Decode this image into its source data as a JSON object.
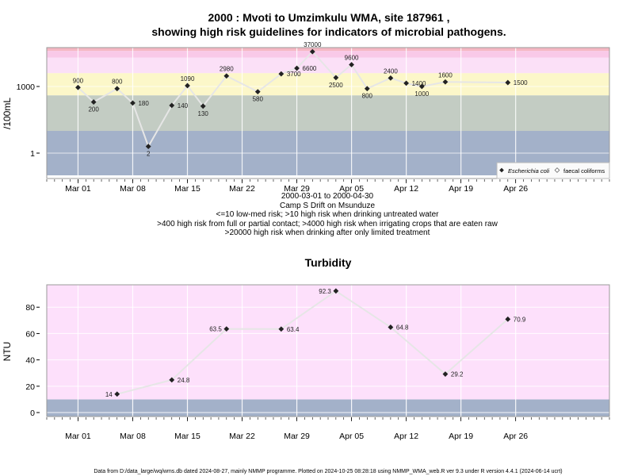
{
  "footer": "Data from D:/data_large/wq/wms.db dated 2024-08-27, mainly NMMP programme. Plotted on 2024-10-25 08:28:18 using NMMP_WMA_web.R ver 9.3 under R version 4.4.1 (2024-06-14 ucrt)",
  "x_ticks": [
    "Mar 01",
    "Mar 08",
    "Mar 15",
    "Mar 22",
    "Mar 29",
    "Apr 05",
    "Apr 12",
    "Apr 19",
    "Apr 26"
  ],
  "x_tick_dates": [
    "2000-03-01",
    "2000-03-08",
    "2000-03-15",
    "2000-03-22",
    "2000-03-29",
    "2000-04-05",
    "2000-04-12",
    "2000-04-19",
    "2000-04-26"
  ],
  "colors": {
    "band_low": "#a3b1c9",
    "band_green": "#c3ccc3",
    "band_yellow": "#fcf7c9",
    "band_pink": "#fbe0f7",
    "band_pink2": "#f9c9e8",
    "band_red": "#f5b7c3",
    "line": "#e6e6e6",
    "point": "#222222",
    "turbidity_high": "#fde0fb",
    "turbidity_low": "#a3b1c9"
  },
  "chart_data": [
    {
      "type": "line",
      "title_line1": "2000 : Mvoti to Umzimkulu WMA, site 187961 ,",
      "title_line2": "showing high risk guidelines for indicators of microbial pathogens.",
      "ylabel": "/100mL",
      "y_scale": "log10",
      "y_ticks": [
        "1",
        "1000"
      ],
      "x_range": [
        "2000-02-26",
        "2000-05-08"
      ],
      "subtitle_lines": [
        "2000-03-01 to 2000-04-30",
        "Camp S Drift on Msunduze",
        "<=10 low-med risk; >10 high risk when drinking untreated water",
        ">400 high risk from full or partial contact; >4000 high risk when irrigating crops that are eaten raw",
        ">20000 high risk when drinking after only limited treatment"
      ],
      "legend": [
        "Escherichia coli",
        "faecal coliforms"
      ],
      "legend_position": "bottom-right",
      "series": [
        {
          "name": "Escherichia coli",
          "points": [
            {
              "x": "2000-03-01",
              "y": 900,
              "label": "900"
            },
            {
              "x": "2000-03-03",
              "y": 200,
              "label": "200"
            },
            {
              "x": "2000-03-06",
              "y": 800,
              "label": "800"
            },
            {
              "x": "2000-03-08",
              "y": 180,
              "label": "180"
            },
            {
              "x": "2000-03-10",
              "y": 2,
              "label": "2"
            },
            {
              "x": "2000-03-13",
              "y": 140,
              "label": "140"
            },
            {
              "x": "2000-03-15",
              "y": 1090,
              "label": "1090"
            },
            {
              "x": "2000-03-17",
              "y": 130,
              "label": "130"
            },
            {
              "x": "2000-03-20",
              "y": 2980,
              "label": "2980"
            },
            {
              "x": "2000-03-24",
              "y": 580,
              "label": "580"
            },
            {
              "x": "2000-03-27",
              "y": 3700,
              "label": "3700"
            },
            {
              "x": "2000-03-29",
              "y": 6600,
              "label": "6600"
            },
            {
              "x": "2000-03-31",
              "y": 37000,
              "label": "37000"
            },
            {
              "x": "2000-04-03",
              "y": 2500,
              "label": "2500"
            },
            {
              "x": "2000-04-05",
              "y": 9600,
              "label": "9600"
            },
            {
              "x": "2000-04-07",
              "y": 800,
              "label": "800"
            },
            {
              "x": "2000-04-10",
              "y": 2400,
              "label": "2400"
            },
            {
              "x": "2000-04-12",
              "y": 1400,
              "label": "1400"
            },
            {
              "x": "2000-04-14",
              "y": 1000,
              "label": "1000"
            },
            {
              "x": "2000-04-17",
              "y": 1600,
              "label": "1600"
            },
            {
              "x": "2000-04-25",
              "y": 1500,
              "label": "1500"
            }
          ]
        }
      ],
      "bands": [
        {
          "from": 0.1,
          "to": 10,
          "color_key": "band_low"
        },
        {
          "from": 10,
          "to": 400,
          "color_key": "band_green"
        },
        {
          "from": 400,
          "to": 4000,
          "color_key": "band_yellow"
        },
        {
          "from": 4000,
          "to": 20000,
          "color_key": "band_pink"
        },
        {
          "from": 20000,
          "to": 40000,
          "color_key": "band_pink2"
        },
        {
          "from": 40000,
          "to": 200000,
          "color_key": "band_red"
        }
      ]
    },
    {
      "type": "line",
      "title": "Turbidity",
      "ylabel": "NTU",
      "y_ticks": [
        0,
        20,
        40,
        60,
        80
      ],
      "ylim": [
        -3,
        97
      ],
      "x_range": [
        "2000-02-26",
        "2000-05-08"
      ],
      "series": [
        {
          "name": "",
          "points": [
            {
              "x": "2000-03-06",
              "y": 14,
              "label": "14"
            },
            {
              "x": "2000-03-13",
              "y": 24.8,
              "label": "24.8"
            },
            {
              "x": "2000-03-20",
              "y": 63.5,
              "label": "63.5"
            },
            {
              "x": "2000-03-27",
              "y": 63.4,
              "label": "63.4"
            },
            {
              "x": "2000-04-03",
              "y": 92.3,
              "label": "92.3"
            },
            {
              "x": "2000-04-10",
              "y": 64.8,
              "label": "64.8"
            },
            {
              "x": "2000-04-17",
              "y": 29.2,
              "label": "29.2"
            },
            {
              "x": "2000-04-25",
              "y": 70.9,
              "label": "70.9"
            }
          ]
        }
      ],
      "bands": [
        {
          "from": -3,
          "to": 10,
          "color_key": "turbidity_low"
        },
        {
          "from": 10,
          "to": 97,
          "color_key": "turbidity_high"
        }
      ]
    }
  ]
}
